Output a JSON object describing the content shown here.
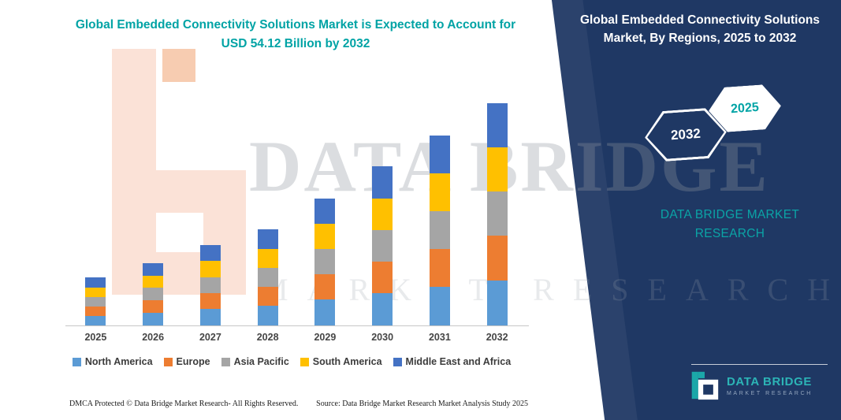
{
  "colors": {
    "accent_teal": "#00a3a5",
    "navy": "#1f3864",
    "watermark_peach": "#fbe2d7"
  },
  "left_panel": {
    "title": "Global Embedded Connectivity Solutions Market is Expected to Account for USD 54.12 Billion by 2032",
    "footer": {
      "dmca": "DMCA Protected © Data Bridge Market Research-  All Rights Reserved.",
      "source": "Source: Data Bridge Market Research  Market Analysis Study 2025"
    }
  },
  "right_panel": {
    "title": "Global Embedded Connectivity Solutions Market, By Regions, 2025 to 2032",
    "hexagon_back_label": "2032",
    "hexagon_front_label": "2025",
    "brand_text": "DATA BRIDGE MARKET RESEARCH",
    "logo": {
      "name": "DATA BRIDGE",
      "tagline": "MARKET RESEARCH"
    }
  },
  "watermark": {
    "line1": "DATA BRIDGE",
    "line2": "MARKET RESEARCH"
  },
  "chart_data": {
    "type": "bar",
    "stacked": true,
    "title": "Global Embedded Connectivity Solutions Market, By Regions, 2025 to 2032",
    "units": "USD Billion",
    "categories": [
      "2025",
      "2026",
      "2027",
      "2028",
      "2029",
      "2030",
      "2031",
      "2032"
    ],
    "series": [
      {
        "name": "North America",
        "color": "#5B9BD5",
        "values": [
          2.4,
          3.1,
          4.0,
          4.8,
          6.3,
          7.8,
          9.4,
          11.0
        ]
      },
      {
        "name": "Europe",
        "color": "#ED7D31",
        "values": [
          2.3,
          3.0,
          3.9,
          4.6,
          6.1,
          7.7,
          9.2,
          10.8
        ]
      },
      {
        "name": "Asia Pacific",
        "color": "#A5A5A5",
        "values": [
          2.3,
          3.0,
          3.9,
          4.7,
          6.2,
          7.7,
          9.3,
          10.8
        ]
      },
      {
        "name": "South America",
        "color": "#FFC000",
        "values": [
          2.3,
          3.0,
          3.9,
          4.6,
          6.1,
          7.7,
          9.2,
          10.8
        ]
      },
      {
        "name": "Middle East and Africa",
        "color": "#4472C4",
        "values": [
          2.4,
          3.1,
          3.9,
          4.7,
          6.2,
          7.8,
          9.2,
          10.7
        ]
      }
    ],
    "totals_estimated": [
      11.7,
      15.2,
      19.6,
      23.4,
      30.9,
      38.7,
      46.3,
      54.1
    ],
    "stated_total_2032": "USD 54.12 Billion",
    "ylim": [
      0,
      60
    ],
    "grid": false,
    "legend_position": "bottom"
  }
}
